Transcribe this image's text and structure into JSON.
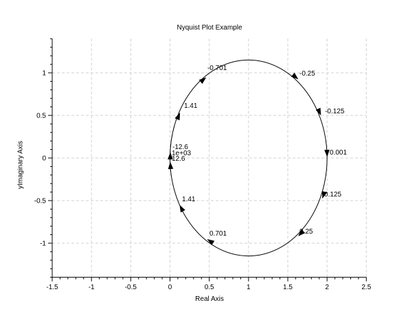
{
  "figure": {
    "background": "#ffffff",
    "axis_color": "#000000"
  },
  "chart_data": {
    "type": "line",
    "subtype": "nyquist",
    "title": "Nyquist Plot Example",
    "xlabel": "Real Axis",
    "ylabel": "yImaginary Axis",
    "xlim": [
      -1.5,
      2.5
    ],
    "ylim": [
      -1.4,
      1.4
    ],
    "x_major_ticks": [
      -1.5,
      -1,
      -0.5,
      0,
      0.5,
      1,
      1.5,
      2,
      2.5
    ],
    "x_tick_labels": [
      "-1.5",
      "-1",
      "-0.5",
      "0",
      "0.5",
      "1",
      "1.5",
      "2",
      "2.5"
    ],
    "y_major_ticks": [
      1,
      0.5,
      0,
      -0.5,
      -1
    ],
    "y_tick_labels": [
      "1",
      "0.5",
      "0",
      "-0.5",
      "-1"
    ],
    "minor_tick_step": 0.1,
    "grid": {
      "on": true,
      "color": "#d0d0d0",
      "style": "dashed",
      "x_lines": [
        -1,
        -0.5,
        0,
        0.5,
        1,
        1.5,
        2,
        2.5
      ],
      "y_lines": [
        1,
        0.5,
        0,
        -0.5,
        -1
      ]
    },
    "curve": {
      "shape": "ellipse",
      "center": [
        1,
        0
      ],
      "rx": 1.0,
      "ry": 1.15,
      "color": "#000000",
      "direction_of_travel": "left-top-right-bottom"
    },
    "frequency_labels": [
      {
        "text": "-0.701",
        "x": 0.476,
        "y": 1.032
      },
      {
        "text": "-0.25",
        "x": 1.649,
        "y": 0.968
      },
      {
        "text": "1.41",
        "x": 0.179,
        "y": 0.589
      },
      {
        "text": "-0.125",
        "x": 1.973,
        "y": 0.524
      },
      {
        "text": "-12.6",
        "x": 0.031,
        "y": 0.105
      },
      {
        "text": "1e+03",
        "x": 0.022,
        "y": 0.032
      },
      {
        "text": "12.6",
        "x": 0.022,
        "y": -0.032
      },
      {
        "text": "0.001",
        "x": 2.034,
        "y": 0.04
      },
      {
        "text": "1.41",
        "x": 0.153,
        "y": -0.508
      },
      {
        "text": "0.125",
        "x": 1.964,
        "y": -0.452
      },
      {
        "text": "0.701",
        "x": 0.503,
        "y": -0.911
      },
      {
        "text": "0.25",
        "x": 1.649,
        "y": -0.887
      }
    ],
    "arrows": [
      {
        "x": 0.004,
        "y": 0.024,
        "dir": 89
      },
      {
        "x": 0.006,
        "y": -0.089,
        "dir": 94
      },
      {
        "x": 0.109,
        "y": 0.492,
        "dir": 67
      },
      {
        "x": 0.424,
        "y": 0.919,
        "dir": 39
      },
      {
        "x": 1.597,
        "y": 0.952,
        "dir": -40
      },
      {
        "x": 1.903,
        "y": 0.54,
        "dir": -66
      },
      {
        "x": 2.0,
        "y": 0.056,
        "dir": -88
      },
      {
        "x": 1.955,
        "y": -0.435,
        "dir": -109
      },
      {
        "x": 1.666,
        "y": -0.887,
        "dir": -135
      },
      {
        "x": 0.512,
        "y": -0.976,
        "dir": 147
      },
      {
        "x": 0.144,
        "y": -0.589,
        "dir": 118
      }
    ]
  }
}
